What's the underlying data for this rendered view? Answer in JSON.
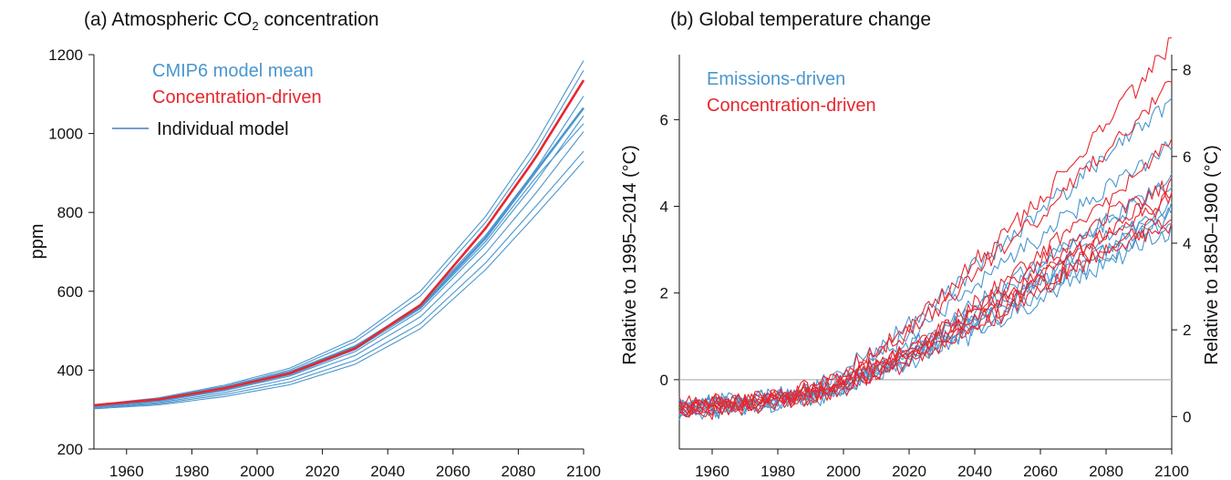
{
  "chart_data": [
    {
      "type": "line",
      "title_main": "(a) Atmospheric CO",
      "title_sub": "2",
      "title_end": " concentration",
      "ylabel": "ppm",
      "xlim": [
        1950,
        2100
      ],
      "ylim": [
        200,
        1200
      ],
      "x_ticks": [
        "1960",
        "1980",
        "2000",
        "2020",
        "2040",
        "2060",
        "2080",
        "2100"
      ],
      "y_ticks": [
        "200",
        "400",
        "600",
        "800",
        "1000",
        "1200"
      ],
      "legend": [
        {
          "label": "CMIP6 model mean",
          "color": "#4a96cf"
        },
        {
          "label": "Concentration-driven",
          "color": "#e8262e"
        },
        {
          "label": "Individual model",
          "color": "#2f5fb0"
        }
      ],
      "series": [
        {
          "name": "CMIP6 model mean",
          "color": "#4a96cf",
          "x": [
            1950,
            1970,
            1990,
            2010,
            2030,
            2050,
            2070,
            2085,
            2100
          ],
          "y": [
            310,
            325,
            355,
            395,
            460,
            560,
            735,
            900,
            1065
          ]
        },
        {
          "name": "Concentration-driven",
          "color": "#e8262e",
          "x": [
            1950,
            1970,
            1990,
            2010,
            2030,
            2050,
            2070,
            2085,
            2100
          ],
          "y": [
            311,
            326,
            354,
            392,
            455,
            565,
            760,
            935,
            1135
          ]
        },
        {
          "color": "#4a96cf",
          "x": [
            1950,
            1970,
            1990,
            2010,
            2030,
            2050,
            2070,
            2085,
            2100
          ],
          "y": [
            312,
            330,
            362,
            405,
            480,
            600,
            790,
            970,
            1185
          ]
        },
        {
          "color": "#4a96cf",
          "x": [
            1950,
            1970,
            1990,
            2010,
            2030,
            2050,
            2070,
            2085,
            2100
          ],
          "y": [
            311,
            328,
            359,
            400,
            472,
            588,
            775,
            950,
            1160
          ]
        },
        {
          "color": "#4a96cf",
          "x": [
            1950,
            1970,
            1990,
            2010,
            2030,
            2050,
            2070,
            2085,
            2100
          ],
          "y": [
            309,
            324,
            354,
            393,
            460,
            567,
            742,
            905,
            1095
          ]
        },
        {
          "color": "#4a96cf",
          "x": [
            1950,
            1970,
            1990,
            2010,
            2030,
            2050,
            2070,
            2085,
            2100
          ],
          "y": [
            307,
            321,
            348,
            385,
            447,
            550,
            718,
            873,
            1045
          ]
        },
        {
          "color": "#4a96cf",
          "x": [
            1950,
            1970,
            1990,
            2010,
            2030,
            2050,
            2070,
            2085,
            2100
          ],
          "y": [
            305,
            318,
            343,
            378,
            437,
            535,
            697,
            845,
            1005
          ]
        },
        {
          "color": "#4a96cf",
          "x": [
            1950,
            1970,
            1990,
            2010,
            2030,
            2050,
            2070,
            2085,
            2100
          ],
          "y": [
            304,
            315,
            338,
            370,
            425,
            518,
            672,
            812,
            955
          ]
        },
        {
          "color": "#4a96cf",
          "x": [
            1950,
            1970,
            1990,
            2010,
            2030,
            2050,
            2070,
            2085,
            2100
          ],
          "y": [
            302,
            312,
            333,
            363,
            415,
            505,
            655,
            790,
            930
          ]
        },
        {
          "color": "#4a96cf",
          "x": [
            1950,
            1970,
            1990,
            2010,
            2030,
            2050,
            2070,
            2085,
            2100
          ],
          "y": [
            308,
            322,
            350,
            388,
            452,
            556,
            726,
            885,
            1025
          ]
        }
      ]
    },
    {
      "type": "line",
      "title": "(b) Global temperature change",
      "ylabel": "Relative to 1995–2014 (°C)",
      "y2label": "Relative to 1850–1900 (°C)",
      "xlim": [
        1950,
        2100
      ],
      "ylim": [
        -1.6,
        7.5
      ],
      "y2_offset": 0.85,
      "zero_line": 0,
      "x_ticks": [
        "1960",
        "1980",
        "2000",
        "2020",
        "2040",
        "2060",
        "2080",
        "2100"
      ],
      "y_ticks": [
        "0",
        "2",
        "4",
        "6"
      ],
      "y2_ticks": [
        "0",
        "2",
        "4",
        "6",
        "8"
      ],
      "legend": [
        {
          "label": "Emissions-driven",
          "color": "#4a96cf"
        },
        {
          "label": "Concentration-driven",
          "color": "#e8262e"
        }
      ],
      "series": [
        {
          "color": "#4a96cf",
          "x": [
            1950,
            1970,
            1990,
            2000,
            2010,
            2020,
            2030,
            2040,
            2050,
            2060,
            2070,
            2080,
            2090,
            2100
          ],
          "y": [
            -0.6,
            -0.5,
            -0.2,
            0.2,
            0.7,
            1.3,
            1.9,
            2.6,
            3.2,
            3.9,
            4.5,
            5.2,
            5.8,
            6.4
          ]
        },
        {
          "color": "#4a96cf",
          "x": [
            1950,
            1970,
            1990,
            2000,
            2010,
            2020,
            2030,
            2040,
            2050,
            2060,
            2070,
            2080,
            2090,
            2100
          ],
          "y": [
            -0.7,
            -0.55,
            -0.3,
            0.0,
            0.5,
            1.0,
            1.6,
            2.2,
            2.8,
            3.3,
            3.9,
            4.4,
            4.9,
            5.4
          ]
        },
        {
          "color": "#4a96cf",
          "x": [
            1950,
            1970,
            1990,
            2000,
            2010,
            2020,
            2030,
            2040,
            2050,
            2060,
            2070,
            2080,
            2090,
            2100
          ],
          "y": [
            -0.6,
            -0.5,
            -0.35,
            -0.1,
            0.3,
            0.7,
            1.1,
            1.6,
            2.1,
            2.6,
            3.1,
            3.6,
            4.1,
            4.5
          ]
        },
        {
          "color": "#4a96cf",
          "x": [
            1950,
            1970,
            1990,
            2000,
            2010,
            2020,
            2030,
            2040,
            2050,
            2060,
            2070,
            2080,
            2090,
            2100
          ],
          "y": [
            -0.75,
            -0.6,
            -0.4,
            -0.15,
            0.2,
            0.55,
            0.95,
            1.35,
            1.8,
            2.25,
            2.7,
            3.1,
            3.5,
            3.9
          ]
        },
        {
          "color": "#4a96cf",
          "x": [
            1950,
            1970,
            1990,
            2000,
            2010,
            2020,
            2030,
            2040,
            2050,
            2060,
            2070,
            2080,
            2090,
            2100
          ],
          "y": [
            -0.65,
            -0.55,
            -0.4,
            -0.2,
            0.15,
            0.45,
            0.8,
            1.2,
            1.6,
            2.0,
            2.45,
            2.85,
            3.25,
            3.6
          ]
        },
        {
          "color": "#4a96cf",
          "x": [
            1950,
            1970,
            1990,
            2000,
            2010,
            2020,
            2030,
            2040,
            2050,
            2060,
            2070,
            2080,
            2090,
            2100
          ],
          "y": [
            -0.7,
            -0.6,
            -0.45,
            -0.25,
            0.1,
            0.4,
            0.75,
            1.1,
            1.5,
            1.9,
            2.3,
            2.7,
            3.1,
            3.4
          ]
        },
        {
          "color": "#4a96cf",
          "x": [
            1950,
            1970,
            1990,
            2000,
            2010,
            2020,
            2030,
            2040,
            2050,
            2060,
            2070,
            2080,
            2090,
            2100
          ],
          "y": [
            -0.8,
            -0.65,
            -0.45,
            -0.2,
            0.2,
            0.5,
            0.9,
            1.3,
            1.75,
            2.2,
            2.6,
            3.0,
            3.45,
            3.8
          ]
        },
        {
          "color": "#4a96cf",
          "x": [
            1950,
            1970,
            1990,
            2000,
            2010,
            2020,
            2030,
            2040,
            2050,
            2060,
            2070,
            2080,
            2090,
            2100
          ],
          "y": [
            -0.55,
            -0.5,
            -0.3,
            -0.05,
            0.35,
            0.75,
            1.2,
            1.7,
            2.2,
            2.7,
            3.2,
            3.65,
            4.1,
            4.6
          ]
        },
        {
          "color": "#4a96cf",
          "x": [
            1950,
            1970,
            1990,
            2000,
            2010,
            2020,
            2030,
            2040,
            2050,
            2060,
            2070,
            2080,
            2090,
            2100
          ],
          "y": [
            -0.6,
            -0.5,
            -0.35,
            -0.1,
            0.25,
            0.6,
            1.0,
            1.45,
            1.9,
            2.35,
            2.8,
            3.25,
            3.7,
            4.1
          ]
        },
        {
          "color": "#e8262e",
          "x": [
            1950,
            1970,
            1990,
            2000,
            2010,
            2020,
            2030,
            2040,
            2050,
            2060,
            2070,
            2080,
            2090,
            2100
          ],
          "y": [
            -0.6,
            -0.5,
            -0.2,
            0.15,
            0.65,
            1.25,
            1.95,
            2.7,
            3.4,
            4.2,
            5.0,
            5.9,
            6.8,
            7.8
          ]
        },
        {
          "color": "#e8262e",
          "x": [
            1950,
            1970,
            1990,
            2000,
            2010,
            2020,
            2030,
            2040,
            2050,
            2060,
            2070,
            2080,
            2090,
            2100
          ],
          "y": [
            -0.65,
            -0.55,
            -0.25,
            0.1,
            0.55,
            1.1,
            1.7,
            2.4,
            3.1,
            3.8,
            4.55,
            5.3,
            6.05,
            6.8
          ]
        },
        {
          "color": "#e8262e",
          "x": [
            1950,
            1970,
            1990,
            2000,
            2010,
            2020,
            2030,
            2040,
            2050,
            2060,
            2070,
            2080,
            2090,
            2100
          ],
          "y": [
            -0.7,
            -0.55,
            -0.35,
            -0.05,
            0.35,
            0.75,
            1.2,
            1.75,
            2.3,
            2.9,
            3.5,
            4.1,
            4.7,
            5.5
          ]
        },
        {
          "color": "#e8262e",
          "x": [
            1950,
            1970,
            1990,
            2000,
            2010,
            2020,
            2030,
            2040,
            2050,
            2060,
            2070,
            2080,
            2090,
            2100
          ],
          "y": [
            -0.6,
            -0.5,
            -0.3,
            -0.05,
            0.3,
            0.7,
            1.15,
            1.65,
            2.15,
            2.7,
            3.25,
            3.75,
            4.2,
            4.5
          ]
        },
        {
          "color": "#e8262e",
          "x": [
            1950,
            1970,
            1990,
            2000,
            2010,
            2020,
            2030,
            2040,
            2050,
            2060,
            2070,
            2080,
            2090,
            2100
          ],
          "y": [
            -0.75,
            -0.6,
            -0.4,
            -0.15,
            0.2,
            0.6,
            1.0,
            1.45,
            1.9,
            2.4,
            2.9,
            3.35,
            3.8,
            4.2
          ]
        },
        {
          "color": "#e8262e",
          "x": [
            1950,
            1970,
            1990,
            2000,
            2010,
            2020,
            2030,
            2040,
            2050,
            2060,
            2070,
            2080,
            2090,
            2100
          ],
          "y": [
            -0.65,
            -0.55,
            -0.4,
            -0.2,
            0.15,
            0.5,
            0.9,
            1.3,
            1.75,
            2.2,
            2.65,
            3.05,
            3.45,
            3.7
          ]
        },
        {
          "color": "#e8262e",
          "x": [
            1950,
            1970,
            1990,
            2000,
            2010,
            2020,
            2030,
            2040,
            2050,
            2060,
            2070,
            2080,
            2090,
            2100
          ],
          "y": [
            -0.8,
            -0.65,
            -0.45,
            -0.25,
            0.1,
            0.45,
            0.8,
            1.2,
            1.6,
            2.05,
            2.5,
            2.9,
            3.3,
            3.5
          ]
        },
        {
          "color": "#e8262e",
          "x": [
            1950,
            1970,
            1990,
            2000,
            2010,
            2020,
            2030,
            2040,
            2050,
            2060,
            2070,
            2080,
            2090,
            2100
          ],
          "y": [
            -0.55,
            -0.5,
            -0.3,
            -0.05,
            0.3,
            0.65,
            1.05,
            1.5,
            1.95,
            2.45,
            2.95,
            3.4,
            3.85,
            4.3
          ]
        }
      ]
    }
  ]
}
